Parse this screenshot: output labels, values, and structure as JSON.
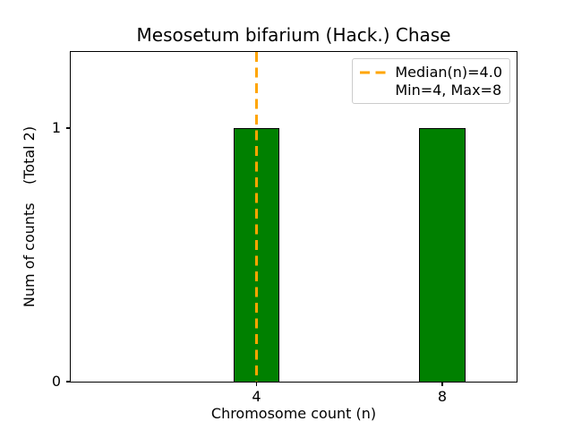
{
  "chart_data": {
    "type": "bar",
    "title": "Mesosetum bifarium (Hack.) Chase",
    "xlabel": "Chromosome count (n)",
    "ylabel": "Num of counts    (Total 2)",
    "x": [
      4,
      8
    ],
    "counts": [
      1,
      1
    ],
    "bar_width": 1.0,
    "bar_color": "#008000",
    "bar_edge_color": "#000000",
    "median": 4.0,
    "median_line_color": "#FFA500",
    "median_line_style": "dashed",
    "xlim": [
      0,
      9.6
    ],
    "ylim": [
      0,
      1.3
    ],
    "xticks": {
      "values": [
        4,
        8
      ],
      "labels": [
        "4",
        "8"
      ]
    },
    "yticks": {
      "values": [
        0,
        1
      ],
      "labels": [
        "0",
        "1"
      ]
    },
    "legend": {
      "position": "upper right",
      "entries": [
        "Median(n)=4.0",
        "Min=4, Max=8"
      ]
    },
    "grid": "off"
  }
}
